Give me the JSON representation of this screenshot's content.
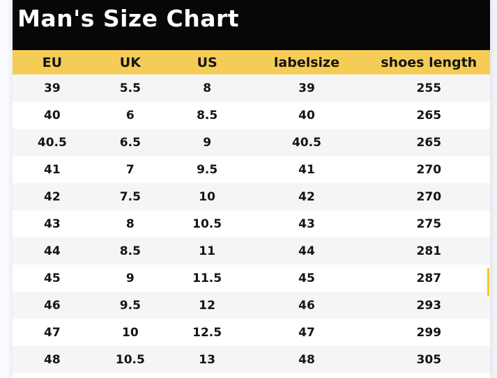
{
  "chart_data": {
    "type": "table",
    "title": "Man's Size Chart",
    "columns": [
      "EU",
      "UK",
      "US",
      "labelsize",
      "shoes length"
    ],
    "rows": [
      [
        "39",
        "5.5",
        "8",
        "39",
        "255"
      ],
      [
        "40",
        "6",
        "8.5",
        "40",
        "265"
      ],
      [
        "40.5",
        "6.5",
        "9",
        "40.5",
        "265"
      ],
      [
        "41",
        "7",
        "9.5",
        "41",
        "270"
      ],
      [
        "42",
        "7.5",
        "10",
        "42",
        "270"
      ],
      [
        "43",
        "8",
        "10.5",
        "43",
        "275"
      ],
      [
        "44",
        "8.5",
        "11",
        "44",
        "281"
      ],
      [
        "45",
        "9",
        "11.5",
        "45",
        "287"
      ],
      [
        "46",
        "9.5",
        "12",
        "46",
        "293"
      ],
      [
        "47",
        "10",
        "12.5",
        "47",
        "299"
      ],
      [
        "48",
        "10.5",
        "13",
        "48",
        "305"
      ]
    ],
    "layout": {
      "striped_rows": true,
      "first_row_shaded": true
    }
  },
  "colors": {
    "title_bar_bg": "#070707",
    "title_text": "#ffffff",
    "header_bg": "#f5cc55",
    "row_bg": "#ffffff",
    "row_alt_bg": "#f5f5f5",
    "cell_text": "#141414",
    "scrollbar_accent": "#fcc41c",
    "page_bg": "#f6f8fb"
  }
}
